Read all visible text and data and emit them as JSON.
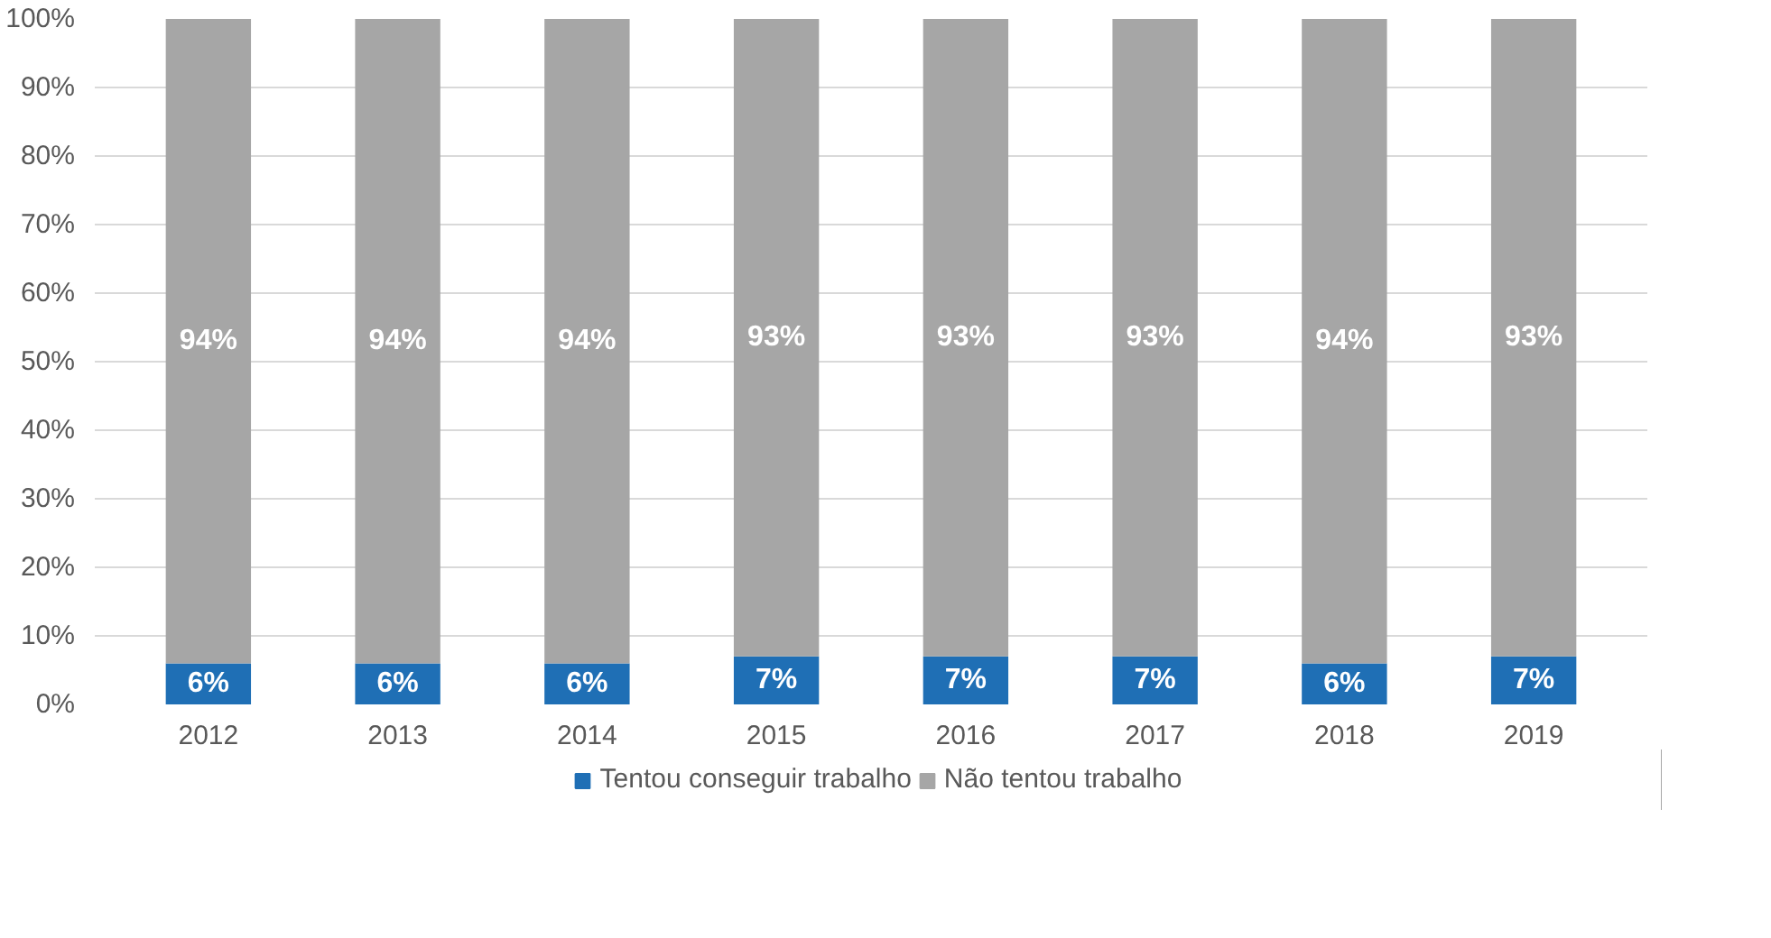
{
  "chart_data": {
    "type": "bar",
    "stacked": true,
    "categories": [
      "2012",
      "2013",
      "2014",
      "2015",
      "2016",
      "2017",
      "2018",
      "2019"
    ],
    "series": [
      {
        "name": "Tentou conseguir trabalho",
        "color": "#1f6fb5",
        "values": [
          6,
          6,
          6,
          7,
          7,
          7,
          6,
          7
        ],
        "value_labels": [
          "6%",
          "6%",
          "6%",
          "7%",
          "7%",
          "7%",
          "6%",
          "7%"
        ]
      },
      {
        "name": "Não tentou trabalho",
        "color": "#a6a6a6",
        "values": [
          94,
          94,
          94,
          93,
          93,
          93,
          94,
          93
        ],
        "value_labels": [
          "94%",
          "94%",
          "94%",
          "93%",
          "93%",
          "93%",
          "94%",
          "93%"
        ]
      }
    ],
    "ylim": [
      0,
      100
    ],
    "yticks": [
      {
        "value": 0,
        "label": "0%"
      },
      {
        "value": 10,
        "label": "10%"
      },
      {
        "value": 20,
        "label": "20%"
      },
      {
        "value": 30,
        "label": "30%"
      },
      {
        "value": 40,
        "label": "40%"
      },
      {
        "value": 50,
        "label": "50%"
      },
      {
        "value": 60,
        "label": "60%"
      },
      {
        "value": 70,
        "label": "70%"
      },
      {
        "value": 80,
        "label": "80%"
      },
      {
        "value": 90,
        "label": "90%"
      },
      {
        "value": 100,
        "label": "100%"
      }
    ],
    "grid": "y",
    "legend": "bottom"
  }
}
